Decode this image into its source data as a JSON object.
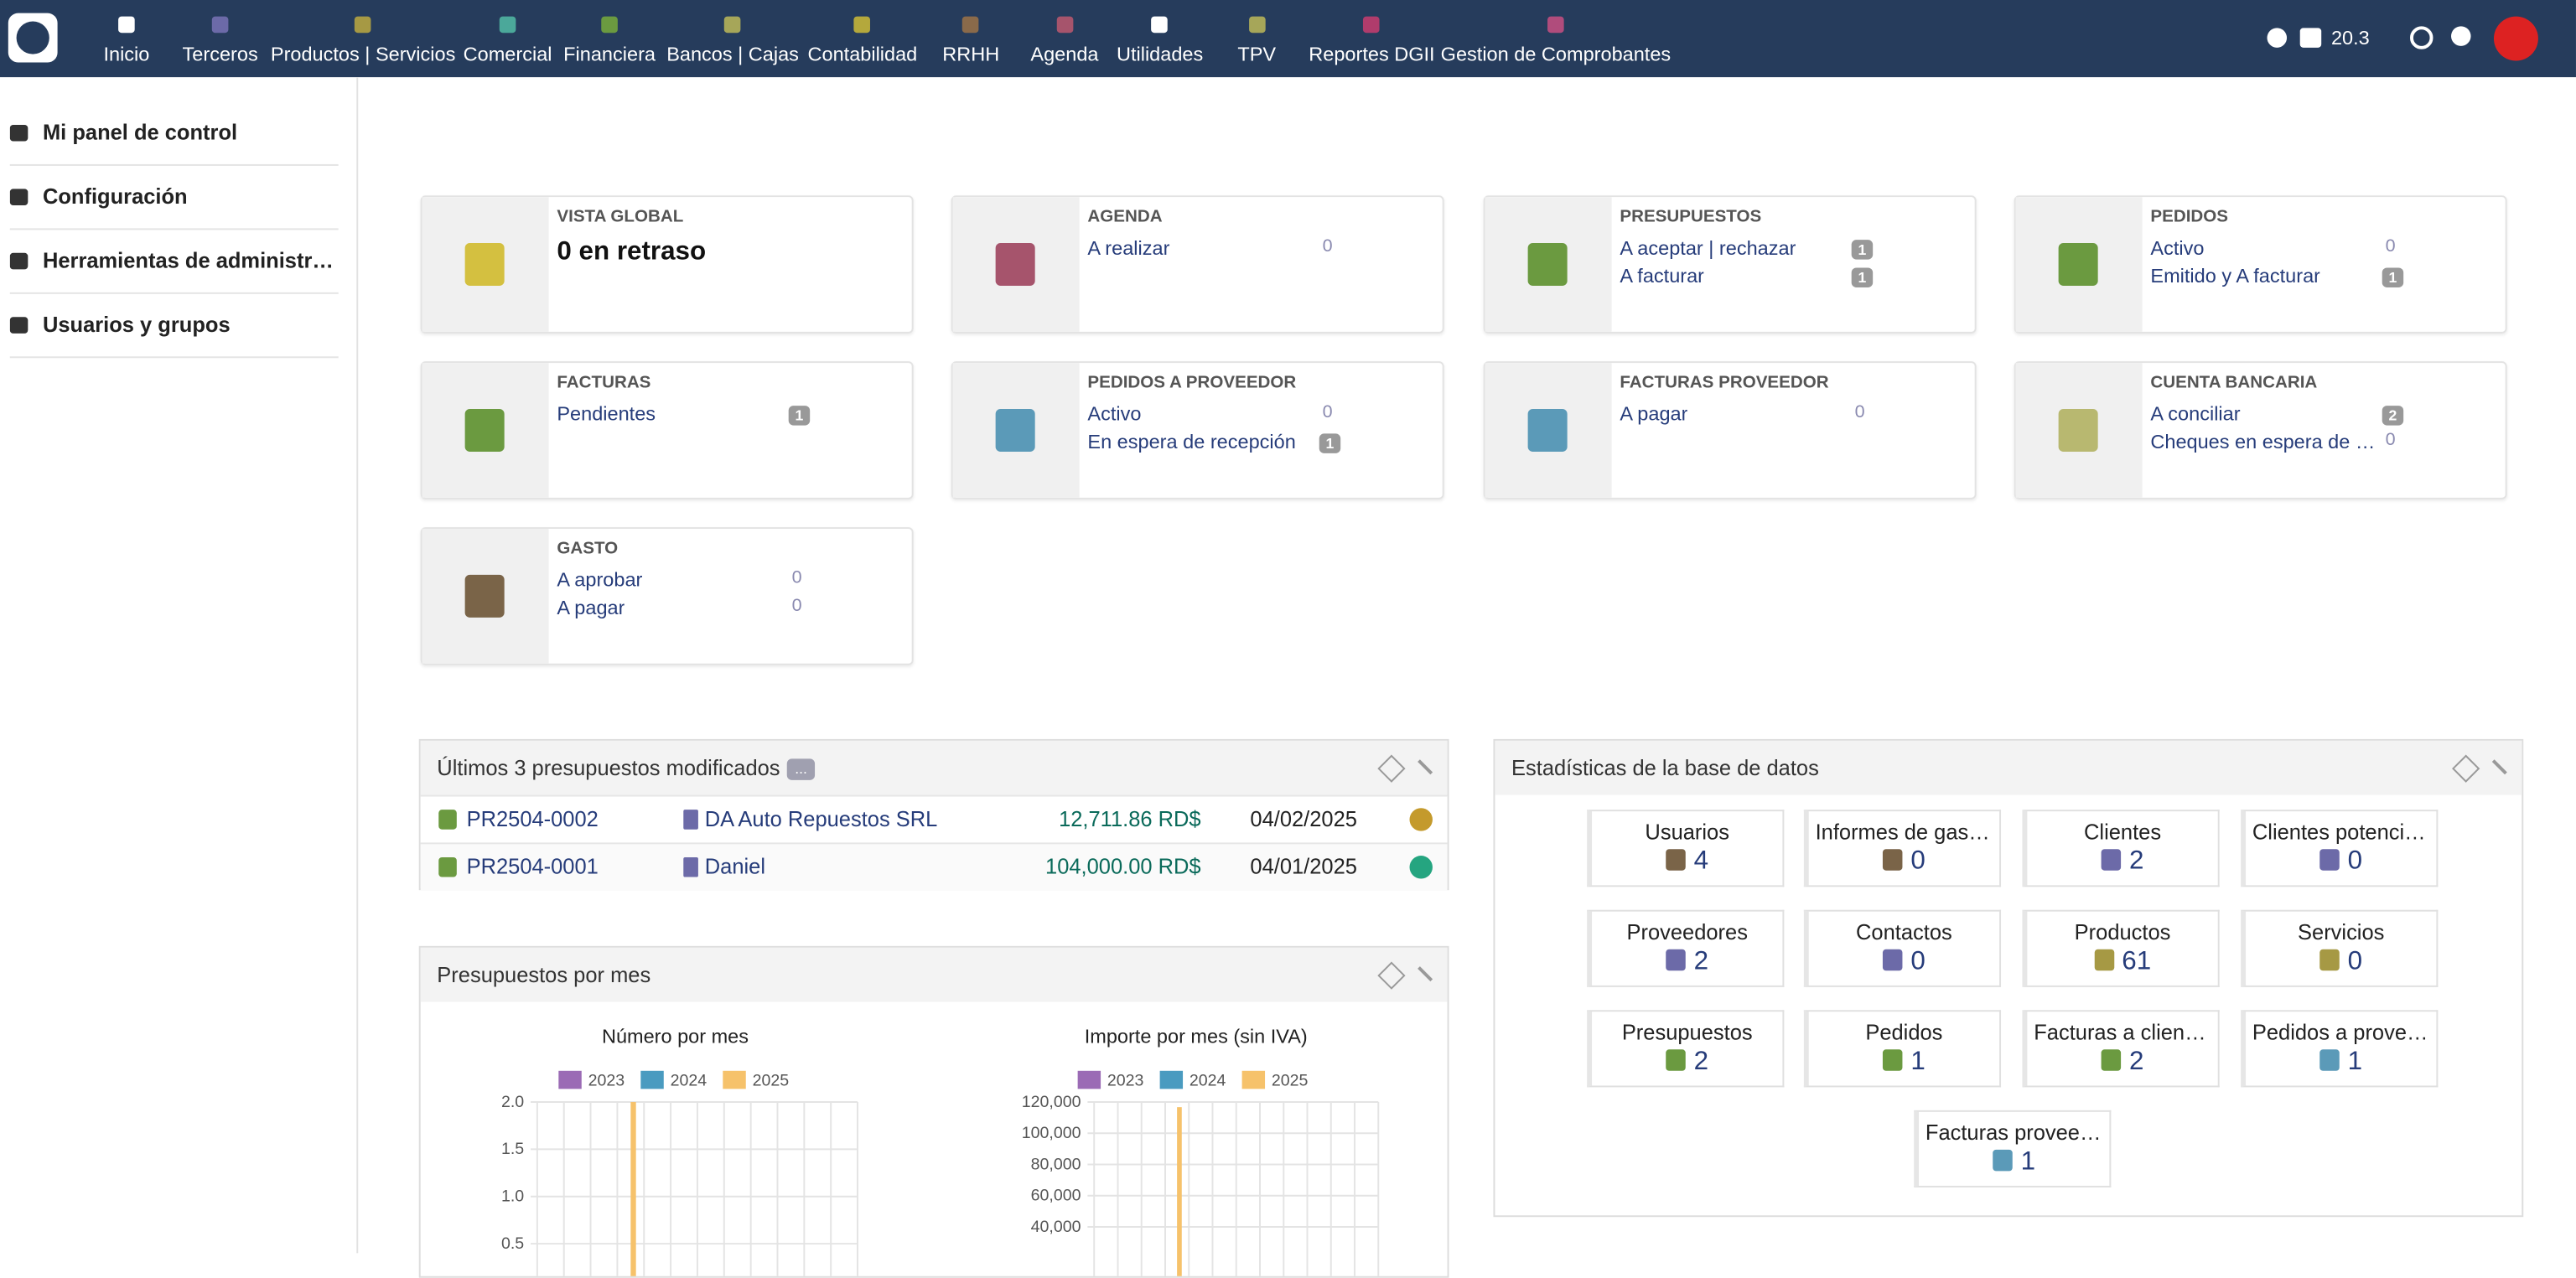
{
  "topbar": {
    "version": "20.3",
    "nav": [
      {
        "label": "Inicio",
        "color": "#ffffff"
      },
      {
        "label": "Terceros",
        "color": "#6c6aa8"
      },
      {
        "label": "Productos | Servicios",
        "color": "#a69944"
      },
      {
        "label": "Comercial",
        "color": "#4ba89a"
      },
      {
        "label": "Financiera",
        "color": "#6b9a40"
      },
      {
        "label": "Bancos | Cajas",
        "color": "#a6a659"
      },
      {
        "label": "Contabilidad",
        "color": "#b4a83c"
      },
      {
        "label": "RRHH",
        "color": "#8a6a4a"
      },
      {
        "label": "Agenda",
        "color": "#a6546c"
      },
      {
        "label": "Utilidades",
        "color": "#ffffff"
      },
      {
        "label": "TPV",
        "color": "#a6a659"
      },
      {
        "label": "Reportes DGII",
        "color": "#b03c6c"
      },
      {
        "label": "Gestion de Comprobantes",
        "color": "#b04c7c"
      }
    ]
  },
  "sidebar": [
    "Mi panel de control",
    "Configuración",
    "Herramientas de administración",
    "Usuarios y grupos"
  ],
  "boxes": [
    {
      "title": "VISTA GLOBAL",
      "big": "0 en retraso",
      "color": "#d4c040",
      "items": []
    },
    {
      "title": "AGENDA",
      "color": "#a6546c",
      "items": [
        {
          "label": "A realizar",
          "count": 0,
          "badge": false
        }
      ]
    },
    {
      "title": "PRESUPUESTOS",
      "color": "#6b9a40",
      "items": [
        {
          "label": "A aceptar | rechazar",
          "count": 1,
          "badge": true
        },
        {
          "label": "A facturar",
          "count": 1,
          "badge": true
        }
      ]
    },
    {
      "title": "PEDIDOS",
      "color": "#6b9a40",
      "items": [
        {
          "label": "Activo",
          "count": 0,
          "badge": false
        },
        {
          "label": "Emitido y A facturar",
          "count": 1,
          "badge": true
        }
      ]
    },
    {
      "title": "FACTURAS",
      "color": "#6b9a40",
      "items": [
        {
          "label": "Pendientes",
          "count": 1,
          "badge": true
        }
      ]
    },
    {
      "title": "PEDIDOS A PROVEEDOR",
      "color": "#5b9ab8",
      "items": [
        {
          "label": "Activo",
          "count": 0,
          "badge": false
        },
        {
          "label": "En espera de recepción",
          "count": 1,
          "badge": true
        }
      ]
    },
    {
      "title": "FACTURAS PROVEEDOR",
      "color": "#5b9ab8",
      "items": [
        {
          "label": "A pagar",
          "count": 0,
          "badge": false
        }
      ]
    },
    {
      "title": "CUENTA BANCARIA",
      "color": "#b8b870",
      "items": [
        {
          "label": "A conciliar",
          "count": 2,
          "badge": true
        },
        {
          "label": "Cheques en espera de depósito",
          "count": 0,
          "badge": false
        }
      ]
    },
    {
      "title": "GASTO",
      "color": "#7a6448",
      "items": [
        {
          "label": "A aprobar",
          "count": 0,
          "badge": false
        },
        {
          "label": "A pagar",
          "count": 0,
          "badge": false
        }
      ]
    }
  ],
  "proposals": {
    "title": "Últimos 3 presupuestos modificados",
    "more": "...",
    "rows": [
      {
        "ref": "PR2504-0002",
        "company": "DA Auto Repuestos SRL",
        "amount": "12,711.86 RD$",
        "date": "04/02/2025",
        "status_color": "#c49a2c"
      },
      {
        "ref": "PR2504-0001",
        "company": "Daniel",
        "amount": "104,000.00 RD$",
        "date": "04/01/2025",
        "status_color": "#25a580"
      }
    ]
  },
  "stats": {
    "title": "Estadísticas de la base de datos",
    "tiles": [
      {
        "label": "Usuarios",
        "value": 4,
        "color": "#7a6448"
      },
      {
        "label": "Informes de gastos",
        "value": 0,
        "color": "#7a6448"
      },
      {
        "label": "Clientes",
        "value": 2,
        "color": "#6c6aa8"
      },
      {
        "label": "Clientes potenciales",
        "value": 0,
        "color": "#6c6aa8"
      },
      {
        "label": "Proveedores",
        "value": 2,
        "color": "#6c6aa8"
      },
      {
        "label": "Contactos",
        "value": 0,
        "color": "#6c6aa8"
      },
      {
        "label": "Productos",
        "value": 61,
        "color": "#a69944"
      },
      {
        "label": "Servicios",
        "value": 0,
        "color": "#a69944"
      },
      {
        "label": "Presupuestos",
        "value": 2,
        "color": "#6b9a40"
      },
      {
        "label": "Pedidos",
        "value": 1,
        "color": "#6b9a40"
      },
      {
        "label": "Facturas a clientes",
        "value": 2,
        "color": "#6b9a40"
      },
      {
        "label": "Pedidos a proveedores",
        "value": 1,
        "color": "#5b9ab8"
      },
      {
        "label": "Facturas proveedores",
        "value": 1,
        "color": "#5b9ab8"
      }
    ]
  },
  "charts_panel": {
    "title": "Presupuestos por mes",
    "charts": [
      {
        "type": "bar",
        "title": "Número por mes",
        "categories": [
          null,
          null,
          null,
          null,
          null,
          null,
          null,
          null,
          null,
          null,
          null,
          null
        ],
        "series": [
          {
            "name": "2023",
            "color": "#9b6bb5",
            "values": [
              0,
              0,
              0,
              0,
              0,
              0,
              0,
              0,
              0,
              0,
              0,
              0
            ]
          },
          {
            "name": "2024",
            "color": "#4a9bc0",
            "values": [
              0,
              0,
              0,
              0,
              0,
              0,
              0,
              0,
              0,
              0,
              0,
              0
            ]
          },
          {
            "name": "2025",
            "color": "#f6c26b",
            "values": [
              0,
              0,
              0,
              2,
              0,
              0,
              0,
              0,
              0,
              0,
              0,
              0
            ]
          }
        ],
        "ylim": [
          0,
          2
        ],
        "yticks": [
          {
            "value": 0.5,
            "label": "0.5"
          },
          {
            "value": 1,
            "label": "1.0"
          },
          {
            "value": 1.5,
            "label": "1.5"
          },
          {
            "value": 2,
            "label": "2.0"
          }
        ],
        "grid": true
      },
      {
        "type": "bar",
        "title": "Importe por mes (sin IVA)",
        "categories": [
          null,
          null,
          null,
          null,
          null,
          null,
          null,
          null,
          null,
          null,
          null,
          null
        ],
        "series": [
          {
            "name": "2023",
            "color": "#9b6bb5",
            "values": [
              0,
              0,
              0,
              0,
              0,
              0,
              0,
              0,
              0,
              0,
              0,
              0
            ]
          },
          {
            "name": "2024",
            "color": "#4a9bc0",
            "values": [
              0,
              0,
              0,
              0,
              0,
              0,
              0,
              0,
              0,
              0,
              0,
              0
            ]
          },
          {
            "name": "2025",
            "color": "#f6c26b",
            "values": [
              0,
              0,
              0,
              116711.86,
              0,
              0,
              0,
              0,
              0,
              0,
              0,
              0
            ]
          }
        ],
        "ylim": [
          0,
          120000
        ],
        "yticks": [
          {
            "value": 40000,
            "label": "40,000"
          },
          {
            "value": 60000,
            "label": "60,000"
          },
          {
            "value": 80000,
            "label": "80,000"
          },
          {
            "value": 100000,
            "label": "100,000"
          },
          {
            "value": 120000,
            "label": "120,000"
          }
        ],
        "grid": true
      }
    ]
  }
}
